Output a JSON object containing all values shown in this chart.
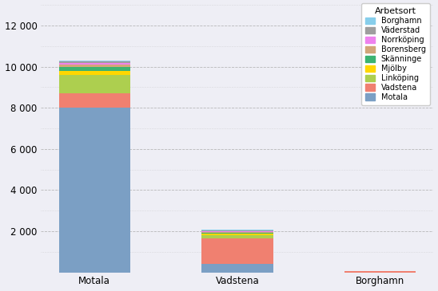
{
  "categories": [
    "Motala",
    "Vadstena",
    "Borghamn"
  ],
  "legend_title": "Arbetsort",
  "legend_labels": [
    "Motala",
    "Vadstena",
    "Linköping",
    "Mjölby",
    "Skänninge",
    "Borensberg",
    "Norrköping",
    "Väderstad",
    "Borghamn"
  ],
  "colors": [
    "#7B9FC4",
    "#F08070",
    "#ADCF4F",
    "#FFD700",
    "#3CB371",
    "#D2A679",
    "#EE82EE",
    "#9E9E9E",
    "#87CEEB"
  ],
  "data": {
    "Motala": [
      8000,
      700,
      900,
      200,
      200,
      100,
      100,
      50,
      50
    ],
    "Vadstena": [
      400,
      1250,
      150,
      80,
      60,
      30,
      30,
      30,
      30
    ],
    "Borghamn": [
      0,
      50,
      0,
      0,
      0,
      0,
      0,
      0,
      0
    ]
  },
  "ylim": [
    0,
    13000
  ],
  "yticks": [
    0,
    2000,
    4000,
    6000,
    8000,
    10000,
    12000
  ],
  "ytick_labels": [
    "",
    "2 000",
    "4 000",
    "6 000",
    "8 000",
    "10 000",
    "12 000"
  ],
  "background_color": "#EEEEF5",
  "bar_width": 0.5,
  "figsize": [
    5.48,
    3.65
  ],
  "dpi": 100
}
